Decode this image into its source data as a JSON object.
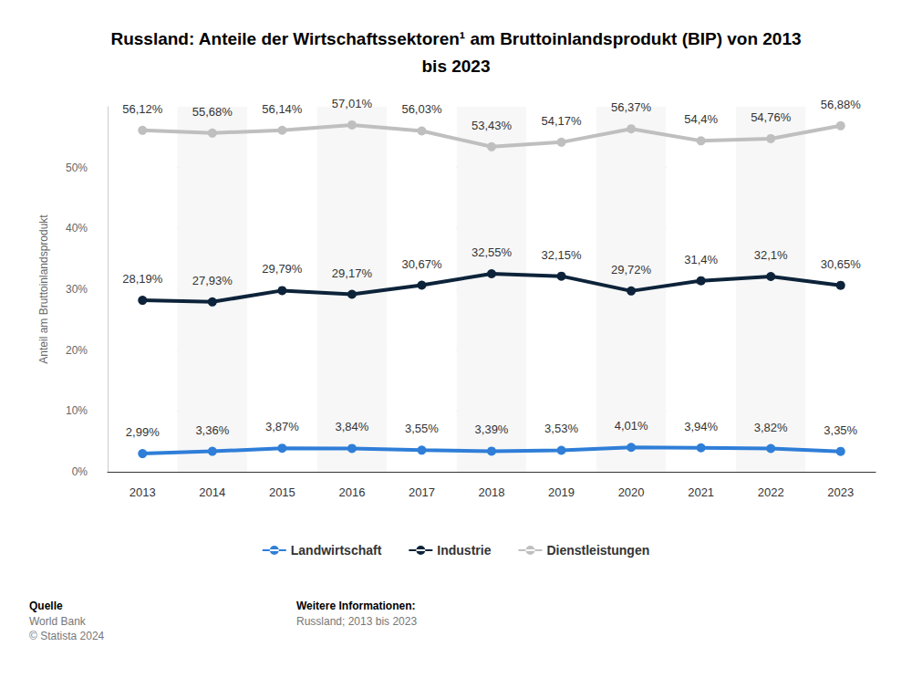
{
  "chart_data": {
    "type": "line",
    "title": "Russland: Anteile der Wirtschaftssektoren¹ am Bruttoinlandsprodukt (BIP) von 2013 bis 2023",
    "y_label": "Anteil am Bruttoinlandsprodukt",
    "categories": [
      "2013",
      "2014",
      "2015",
      "2016",
      "2017",
      "2018",
      "2019",
      "2020",
      "2021",
      "2022",
      "2023"
    ],
    "series": [
      {
        "name": "Landwirtschaft",
        "color": "#2f7ed8",
        "values": [
          2.99,
          3.36,
          3.87,
          3.84,
          3.55,
          3.39,
          3.53,
          4.01,
          3.94,
          3.82,
          3.35
        ],
        "value_labels": [
          "2,99%",
          "3,36%",
          "3,87%",
          "3,84%",
          "3,55%",
          "3,39%",
          "3,53%",
          "4,01%",
          "3,94%",
          "3,82%",
          "3,35%"
        ]
      },
      {
        "name": "Industrie",
        "color": "#0d233a",
        "values": [
          28.19,
          27.93,
          29.79,
          29.17,
          30.67,
          32.55,
          32.15,
          29.72,
          31.4,
          32.1,
          30.65
        ],
        "value_labels": [
          "28,19%",
          "27,93%",
          "29,79%",
          "29,17%",
          "30,67%",
          "32,55%",
          "32,15%",
          "29,72%",
          "31,4%",
          "32,1%",
          "30,65%"
        ]
      },
      {
        "name": "Dienstleistungen",
        "color": "#bfbfbf",
        "values": [
          56.12,
          55.68,
          56.14,
          57.01,
          56.03,
          53.43,
          54.17,
          56.37,
          54.4,
          54.76,
          56.88
        ],
        "value_labels": [
          "56,12%",
          "55,68%",
          "56,14%",
          "57,01%",
          "56,03%",
          "53,43%",
          "54,17%",
          "56,37%",
          "54,4%",
          "54,76%",
          "56,88%"
        ]
      }
    ],
    "ylim": [
      0,
      60
    ],
    "yticks": [
      {
        "value": 0,
        "label": "0%"
      },
      {
        "value": 10,
        "label": "10%"
      },
      {
        "value": 20,
        "label": "20%"
      },
      {
        "value": 30,
        "label": "30%"
      },
      {
        "value": 40,
        "label": "40%"
      },
      {
        "value": 50,
        "label": "50%"
      }
    ],
    "grid": true,
    "legend": "bottom",
    "data_labels": true,
    "marker": "circle",
    "source_label": "Quelle",
    "source": "World Bank",
    "copyright": "© Statista 2024",
    "info_label": "Weitere Informationen:",
    "info": "Russland; 2013 bis 2023"
  }
}
